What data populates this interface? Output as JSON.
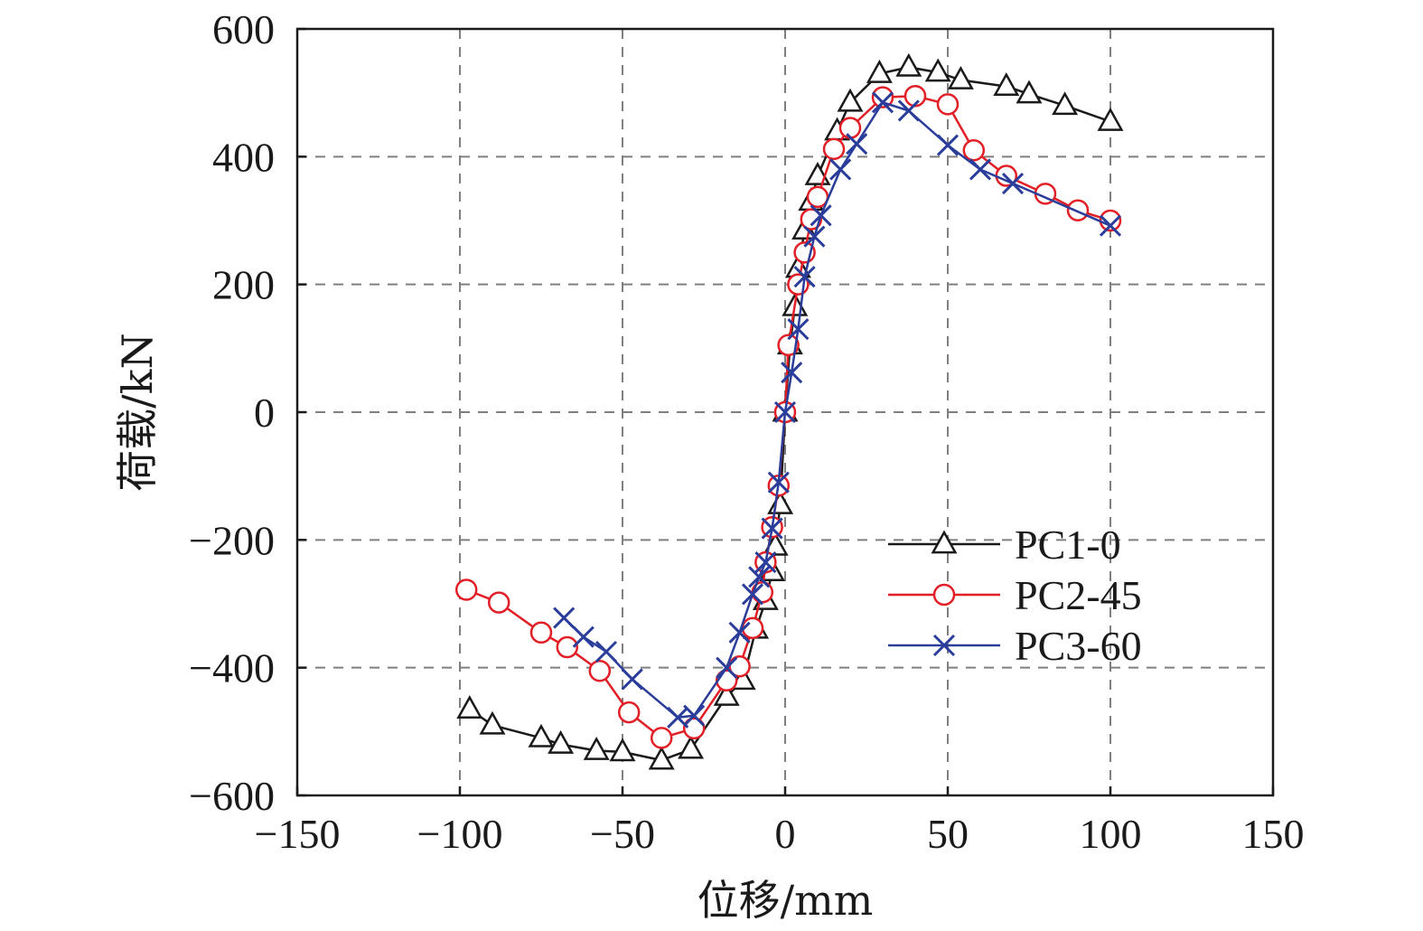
{
  "chart_data": {
    "type": "line",
    "xlabel": "位移/mm",
    "ylabel": "荷载/kN",
    "xlim": [
      -150,
      150
    ],
    "ylim": [
      -600,
      600
    ],
    "xticks": [
      -150,
      -100,
      -50,
      0,
      50,
      100,
      150
    ],
    "yticks": [
      -600,
      -400,
      -200,
      0,
      200,
      400,
      600
    ],
    "xtick_labels": [
      "−150",
      "−100",
      "−50",
      "0",
      "50",
      "100",
      "150"
    ],
    "ytick_labels": [
      "−600",
      "−400",
      "−200",
      "0",
      "200",
      "400",
      "600"
    ],
    "grid": true,
    "legend_position": "center-right",
    "series": [
      {
        "name": "PC1-0",
        "color": "#1a1a1a",
        "marker": "triangle",
        "points": [
          [
            -97,
            -465
          ],
          [
            -90,
            -490
          ],
          [
            -75,
            -510
          ],
          [
            -69,
            -520
          ],
          [
            -58,
            -530
          ],
          [
            -50,
            -532
          ],
          [
            -38,
            -545
          ],
          [
            -29,
            -528
          ],
          [
            -18,
            -445
          ],
          [
            -13,
            -420
          ],
          [
            -9,
            -340
          ],
          [
            -6,
            -295
          ],
          [
            -4,
            -250
          ],
          [
            -3,
            -210
          ],
          [
            -1.5,
            -145
          ],
          [
            0,
            0
          ],
          [
            1.5,
            105
          ],
          [
            3,
            165
          ],
          [
            4,
            225
          ],
          [
            6,
            285
          ],
          [
            8,
            330
          ],
          [
            10,
            370
          ],
          [
            16,
            440
          ],
          [
            20,
            485
          ],
          [
            29,
            530
          ],
          [
            38,
            540
          ],
          [
            47,
            532
          ],
          [
            54,
            520
          ],
          [
            68,
            510
          ],
          [
            75,
            498
          ],
          [
            86,
            480
          ],
          [
            100,
            455
          ]
        ]
      },
      {
        "name": "PC2-45",
        "color": "#e21f26",
        "marker": "circle",
        "points": [
          [
            -98,
            -278
          ],
          [
            -88,
            -298
          ],
          [
            -75,
            -345
          ],
          [
            -67,
            -368
          ],
          [
            -57,
            -405
          ],
          [
            -48,
            -470
          ],
          [
            -38,
            -510
          ],
          [
            -28,
            -495
          ],
          [
            -18,
            -420
          ],
          [
            -14,
            -398
          ],
          [
            -10,
            -338
          ],
          [
            -7,
            -282
          ],
          [
            -6,
            -235
          ],
          [
            -4,
            -180
          ],
          [
            -2,
            -115
          ],
          [
            0,
            0
          ],
          [
            1,
            105
          ],
          [
            4,
            200
          ],
          [
            6,
            250
          ],
          [
            8,
            302
          ],
          [
            10,
            337
          ],
          [
            15,
            412
          ],
          [
            20,
            445
          ],
          [
            30,
            493
          ],
          [
            40,
            495
          ],
          [
            50,
            482
          ],
          [
            58,
            410
          ],
          [
            68,
            370
          ],
          [
            80,
            342
          ],
          [
            90,
            316
          ],
          [
            100,
            300
          ]
        ]
      },
      {
        "name": "PC3-60",
        "color": "#2b3d9a",
        "marker": "x",
        "points": [
          [
            -68,
            -322
          ],
          [
            -62,
            -352
          ],
          [
            -55,
            -375
          ],
          [
            -47,
            -418
          ],
          [
            -33,
            -478
          ],
          [
            -28,
            -475
          ],
          [
            -18,
            -400
          ],
          [
            -14,
            -345
          ],
          [
            -10,
            -285
          ],
          [
            -8,
            -258
          ],
          [
            -6,
            -235
          ],
          [
            -4,
            -182
          ],
          [
            -2,
            -110
          ],
          [
            0,
            0
          ],
          [
            2,
            62
          ],
          [
            4,
            130
          ],
          [
            6,
            212
          ],
          [
            9,
            275
          ],
          [
            11,
            308
          ],
          [
            17,
            380
          ],
          [
            22,
            420
          ],
          [
            30,
            485
          ],
          [
            38,
            472
          ],
          [
            50,
            418
          ],
          [
            60,
            380
          ],
          [
            70,
            358
          ],
          [
            100,
            292
          ]
        ]
      }
    ]
  }
}
